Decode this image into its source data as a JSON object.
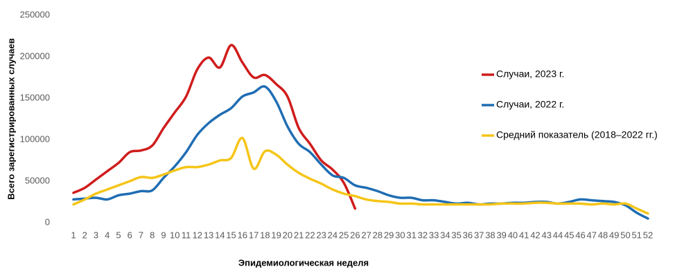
{
  "chart_data": {
    "type": "line",
    "xlabel": "Эпидемиологическая неделя",
    "ylabel": "Всего зарегистрированных случаев",
    "categories": [
      "1",
      "2",
      "3",
      "4",
      "5",
      "6",
      "7",
      "8",
      "9",
      "10",
      "11",
      "12",
      "13",
      "14",
      "15",
      "16",
      "17",
      "18",
      "19",
      "20",
      "21",
      "22",
      "23",
      "24",
      "25",
      "26",
      "27",
      "28",
      "29",
      "30",
      "31",
      "32",
      "33",
      "34",
      "35",
      "36",
      "37",
      "38",
      "39",
      "40",
      "41",
      "42",
      "43",
      "44",
      "45",
      "46",
      "47",
      "48",
      "49",
      "50",
      "51",
      "52"
    ],
    "series": [
      {
        "name": "Случаи, 2023 г.",
        "color": "#d01c1c",
        "values": [
          36000,
          42000,
          52000,
          62000,
          72000,
          85000,
          87000,
          93000,
          114000,
          133000,
          152000,
          185000,
          199000,
          187000,
          214000,
          193000,
          175000,
          178000,
          167000,
          152000,
          114000,
          95000,
          75000,
          64000,
          48000,
          17000,
          null,
          null,
          null,
          null,
          null,
          null,
          null,
          null,
          null,
          null,
          null,
          null,
          null,
          null,
          null,
          null,
          null,
          null,
          null,
          null,
          null,
          null,
          null,
          null,
          null,
          null
        ]
      },
      {
        "name": "Случаи, 2022 г.",
        "color": "#1f6db3",
        "values": [
          28000,
          29000,
          30000,
          28000,
          33000,
          35000,
          38000,
          39000,
          54000,
          68000,
          85000,
          106000,
          120000,
          130000,
          138000,
          152000,
          157000,
          164000,
          146000,
          116000,
          95000,
          85000,
          70000,
          57000,
          54000,
          45000,
          42000,
          38000,
          33000,
          30000,
          30000,
          27000,
          27000,
          25000,
          23000,
          24000,
          22000,
          23000,
          23000,
          24000,
          24000,
          25000,
          25000,
          23000,
          25000,
          28000,
          27000,
          26000,
          25000,
          21000,
          12000,
          5000
        ]
      },
      {
        "name": "Средний показатель (2018–2022 гг.)",
        "color": "#f5c518",
        "values": [
          22000,
          28000,
          35000,
          40000,
          45000,
          50000,
          55000,
          54000,
          58000,
          63000,
          67000,
          67000,
          70000,
          75000,
          78000,
          102000,
          65000,
          86000,
          82000,
          70000,
          60000,
          53000,
          47000,
          40000,
          35000,
          32000,
          28000,
          26000,
          25000,
          23000,
          23000,
          22000,
          22000,
          22000,
          22000,
          22000,
          22000,
          22000,
          23000,
          23000,
          23000,
          24000,
          24000,
          23000,
          23000,
          23000,
          22000,
          23000,
          22000,
          23000,
          17000,
          11000
        ]
      }
    ],
    "ylim": [
      0,
      250000
    ],
    "yticks": [
      0,
      50000,
      100000,
      150000,
      200000,
      250000
    ],
    "grid": false,
    "legend": "right"
  }
}
